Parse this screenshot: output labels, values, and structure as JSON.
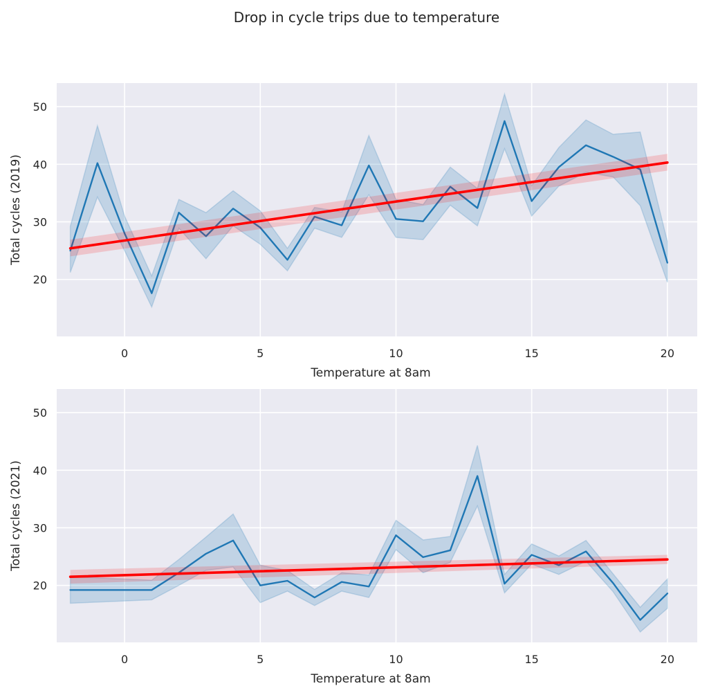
{
  "figure": {
    "title": "Drop in cycle trips due to temperature"
  },
  "chart_data": [
    {
      "type": "line",
      "xlabel": "Temperature at 8am",
      "ylabel": "Total cycles (2019)",
      "xlim": [
        -2.5,
        21.1
      ],
      "ylim": [
        10.1,
        54.1
      ],
      "xticks": [
        0,
        5,
        10,
        15,
        20
      ],
      "yticks": [
        20,
        30,
        40,
        50
      ],
      "grid": true,
      "colors": {
        "line": "#1f77b4",
        "band": "#1f77b4",
        "fit": "#ff0000",
        "fit_band": "#ff0000",
        "background": "#eaeaf2"
      },
      "series": [
        {
          "kind": "mean_with_ci",
          "x": [
            -2,
            -1,
            0,
            1,
            2,
            3,
            4,
            5,
            6,
            7,
            8,
            9,
            10,
            11,
            12,
            13,
            14,
            15,
            16,
            17,
            18,
            19,
            20
          ],
          "y": [
            25.0,
            40.2,
            28.0,
            17.6,
            31.6,
            27.5,
            32.3,
            29.0,
            23.4,
            30.9,
            29.4,
            39.8,
            30.5,
            30.1,
            36.1,
            32.4,
            47.5,
            33.6,
            39.5,
            43.3,
            41.3,
            39.1,
            22.9
          ],
          "lower": [
            21.2,
            34.3,
            25.0,
            15.2,
            28.9,
            23.6,
            29.3,
            26.1,
            21.5,
            28.9,
            27.3,
            34.7,
            27.3,
            26.9,
            32.9,
            29.3,
            42.7,
            31.0,
            36.2,
            38.6,
            37.8,
            32.8,
            19.5
          ],
          "upper": [
            29.2,
            46.7,
            31.0,
            20.6,
            33.9,
            31.6,
            35.4,
            31.9,
            25.4,
            32.5,
            31.7,
            45.0,
            33.9,
            33.0,
            39.5,
            35.8,
            52.2,
            36.3,
            42.9,
            47.7,
            45.2,
            45.6,
            26.6
          ]
        },
        {
          "kind": "regression",
          "x": [
            -2,
            20
          ],
          "y": [
            25.4,
            40.3
          ],
          "lower": [
            24.0,
            38.9
          ],
          "upper": [
            26.9,
            41.8
          ]
        }
      ]
    },
    {
      "type": "line",
      "xlabel": "Temperature at 8am",
      "ylabel": "Total cycles (2021)",
      "xlim": [
        -2.5,
        21.1
      ],
      "ylim": [
        10.1,
        54.1
      ],
      "xticks": [
        0,
        5,
        10,
        15,
        20
      ],
      "yticks": [
        20,
        30,
        40,
        50
      ],
      "grid": true,
      "colors": {
        "line": "#1f77b4",
        "band": "#1f77b4",
        "fit": "#ff0000",
        "fit_band": "#ff0000",
        "background": "#eaeaf2"
      },
      "series": [
        {
          "kind": "mean_with_ci",
          "x": [
            -2,
            1,
            2,
            3,
            4,
            5,
            6,
            7,
            8,
            9,
            10,
            11,
            12,
            13,
            14,
            15,
            16,
            17,
            18,
            19,
            20
          ],
          "y": [
            19.2,
            19.2,
            22.2,
            25.5,
            27.8,
            20.0,
            20.8,
            17.9,
            20.6,
            19.8,
            28.7,
            24.9,
            26.1,
            39.0,
            20.3,
            25.3,
            23.5,
            25.9,
            20.4,
            14.0,
            18.6
          ],
          "lower": [
            16.9,
            17.5,
            20.0,
            22.6,
            23.2,
            17.0,
            19.0,
            16.5,
            19.0,
            17.9,
            26.2,
            22.2,
            24.0,
            33.8,
            18.7,
            23.7,
            21.9,
            24.2,
            18.9,
            11.9,
            16.0
          ],
          "upper": [
            21.5,
            20.9,
            24.5,
            28.4,
            32.4,
            23.5,
            22.6,
            19.3,
            22.2,
            21.8,
            31.3,
            27.9,
            28.5,
            44.3,
            21.9,
            27.2,
            25.1,
            27.8,
            22.0,
            16.2,
            21.1
          ]
        },
        {
          "kind": "regression",
          "x": [
            -2,
            20
          ],
          "y": [
            21.5,
            24.5
          ],
          "lower": [
            20.3,
            23.7
          ],
          "upper": [
            22.7,
            25.3
          ]
        }
      ]
    }
  ]
}
